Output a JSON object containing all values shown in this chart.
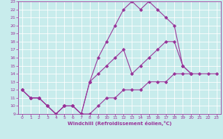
{
  "xlabel": "Windchill (Refroidissement éolien,°C)",
  "bg_color": "#c8ecec",
  "grid_color": "#ffffff",
  "line_color": "#993399",
  "xlim": [
    -0.5,
    23.5
  ],
  "ylim": [
    9,
    23
  ],
  "xticks": [
    0,
    1,
    2,
    3,
    4,
    5,
    6,
    7,
    8,
    9,
    10,
    11,
    12,
    13,
    14,
    15,
    16,
    17,
    18,
    19,
    20,
    21,
    22,
    23
  ],
  "yticks": [
    9,
    10,
    11,
    12,
    13,
    14,
    15,
    16,
    17,
    18,
    19,
    20,
    21,
    22,
    23
  ],
  "line1_x": [
    0,
    1,
    2,
    3,
    4,
    5,
    6,
    7,
    8,
    9,
    10,
    11,
    12,
    13,
    14,
    15,
    16,
    17,
    18,
    19,
    20
  ],
  "line1_y": [
    12,
    11,
    11,
    10,
    9,
    10,
    10,
    9,
    13,
    16,
    18,
    20,
    22,
    23,
    22,
    23,
    22,
    21,
    20,
    15,
    14
  ],
  "line2_x": [
    0,
    1,
    2,
    3,
    4,
    5,
    6,
    7,
    8,
    9,
    10,
    11,
    12,
    13,
    14,
    15,
    16,
    17,
    18,
    19,
    20
  ],
  "line2_y": [
    12,
    11,
    11,
    10,
    9,
    10,
    10,
    9,
    13,
    14,
    15,
    16,
    17,
    14,
    15,
    16,
    17,
    18,
    18,
    15,
    14
  ],
  "line3_x": [
    0,
    1,
    2,
    3,
    4,
    5,
    6,
    7,
    8,
    9,
    10,
    11,
    12,
    13,
    14,
    15,
    16,
    17,
    18,
    19,
    20,
    21,
    22,
    23
  ],
  "line3_y": [
    12,
    11,
    11,
    10,
    9,
    10,
    10,
    9,
    9,
    10,
    11,
    11,
    12,
    12,
    12,
    13,
    13,
    13,
    14,
    14,
    14,
    14,
    14,
    14
  ],
  "marker": "D",
  "markersize": 2.5,
  "linewidth": 0.8
}
